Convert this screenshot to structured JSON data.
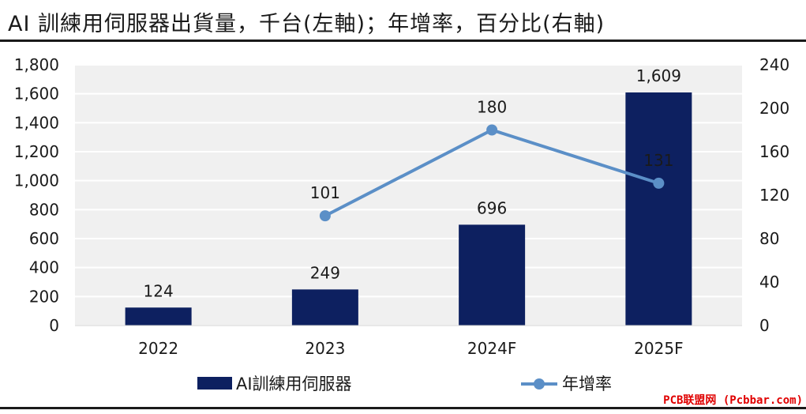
{
  "title": "AI 訓練用伺服器出貨量，千台(左軸)；年增率，百分比(右軸)",
  "watermark": "PCB联盟网 (Pcbbar.com)",
  "colors": {
    "bar": "#0d2060",
    "line": "#5b8fc7",
    "plot_bg": "#f0f0f0",
    "grid": "#ffffff"
  },
  "chart_data": {
    "type": "bar",
    "title": "AI 訓練用伺服器出貨量，千台(左軸)；年增率，百分比(右軸)",
    "categories": [
      "2022",
      "2023",
      "2024F",
      "2025F"
    ],
    "series": [
      {
        "name": "AI訓練用伺服器",
        "type": "bar",
        "axis": "left",
        "values": [
          124,
          249,
          696,
          1609
        ],
        "labels": [
          "124",
          "249",
          "696",
          "1,609"
        ]
      },
      {
        "name": "年增率",
        "type": "line",
        "axis": "right",
        "values": [
          null,
          101,
          180,
          131
        ],
        "labels": [
          "",
          "101",
          "180",
          "131"
        ]
      }
    ],
    "y_left": {
      "lim": [
        0,
        1800
      ],
      "ticks": [
        0,
        200,
        400,
        600,
        800,
        1000,
        1200,
        1400,
        1600,
        1800
      ],
      "tick_labels": [
        "0",
        "200",
        "400",
        "600",
        "800",
        "1,000",
        "1,200",
        "1,400",
        "1,600",
        "1,800"
      ]
    },
    "y_right": {
      "lim": [
        0,
        240
      ],
      "ticks": [
        0,
        40,
        80,
        120,
        160,
        200,
        240
      ],
      "tick_labels": [
        "0",
        "40",
        "80",
        "120",
        "160",
        "200",
        "240"
      ]
    },
    "grid": true,
    "legend": "bottom"
  }
}
